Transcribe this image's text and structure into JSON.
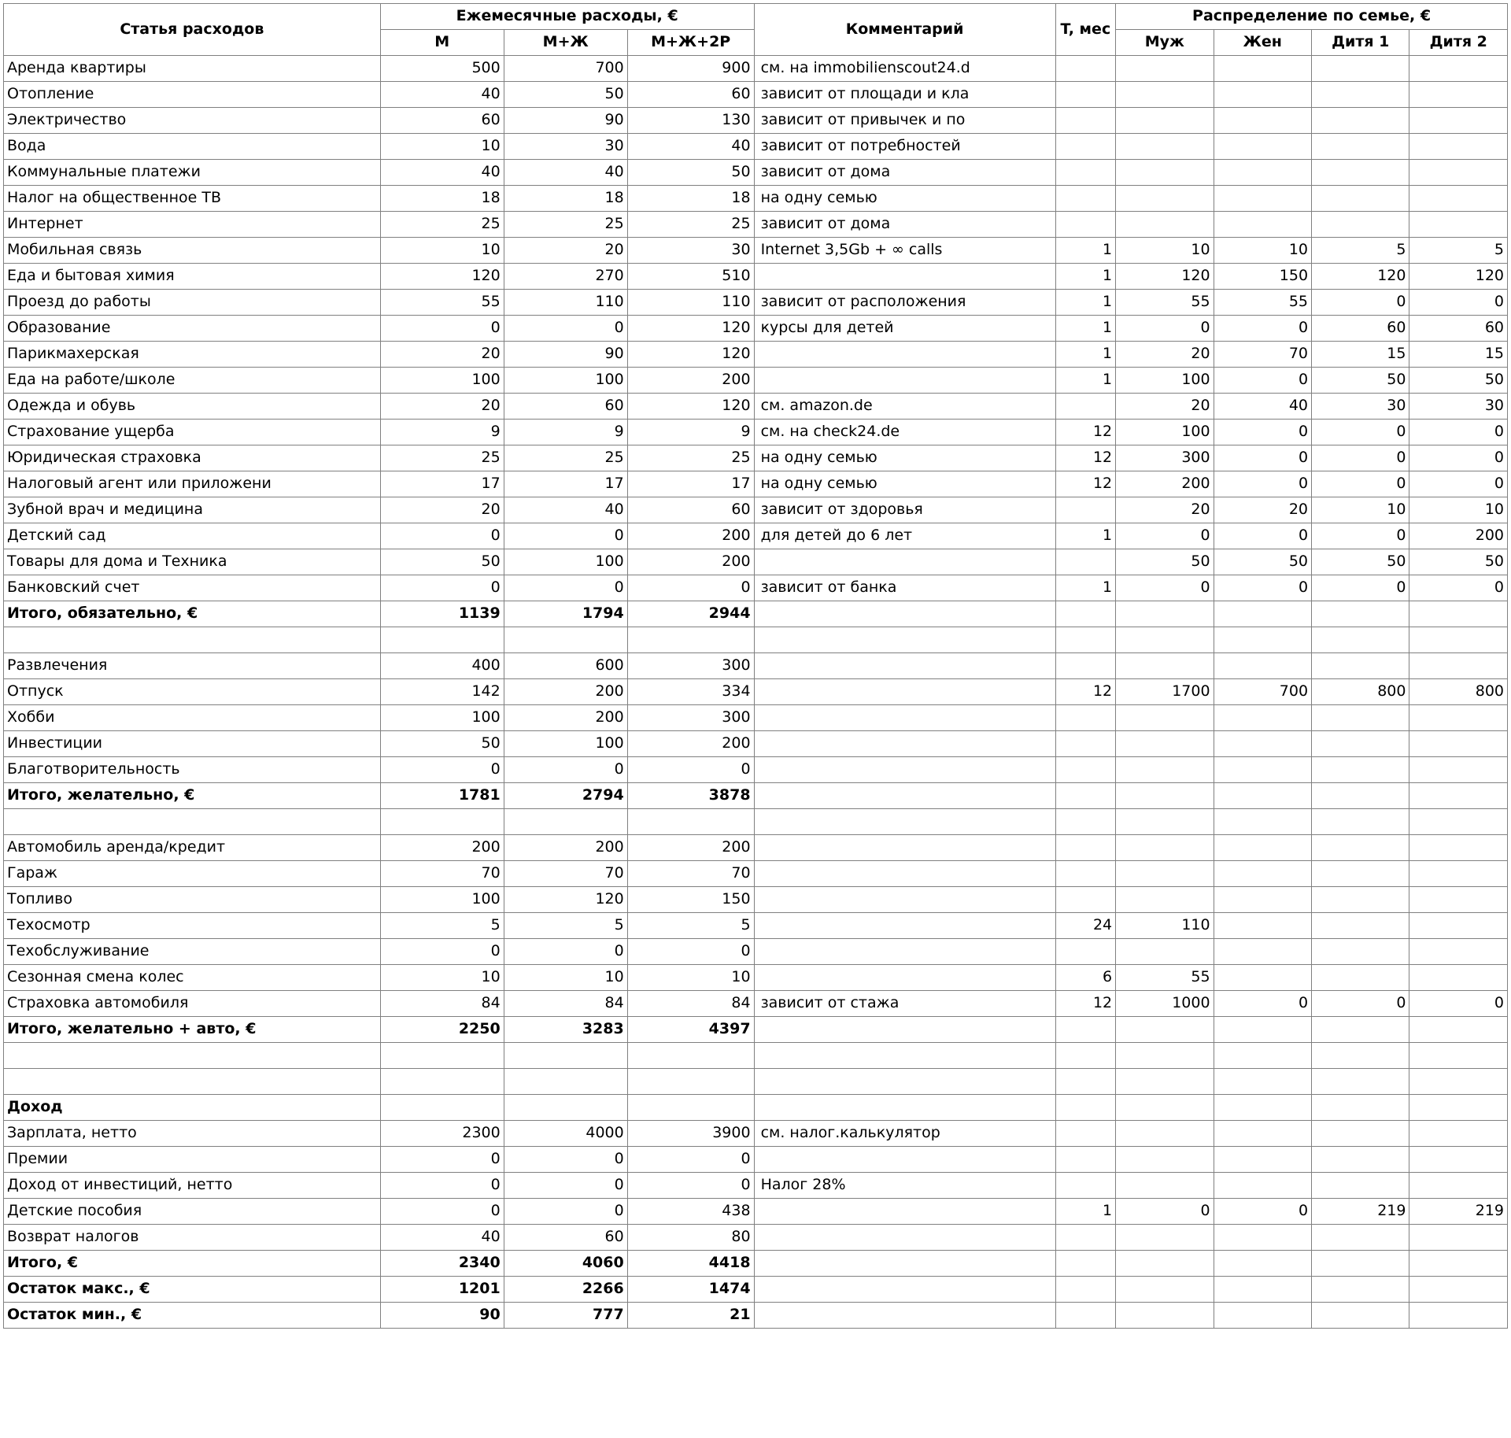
{
  "headers": {
    "article": "Статья расходов",
    "monthly_group": "Ежемесячные расходы, €",
    "m": "М",
    "mw": "М+Ж",
    "mw2": "М+Ж+2Р",
    "comment": "Комментарий",
    "t": "T, мес",
    "family_group": "Распределение по семье, €",
    "husband": "Муж",
    "wife": "Жен",
    "child1": "Дитя 1",
    "child2": "Дитя 2"
  },
  "rows": [
    {
      "label": "Аренда квартиры",
      "m": "500",
      "mw": "700",
      "mw2": "900",
      "comment": "см. на immobilienscout24.d",
      "t": "",
      "h": "",
      "w": "",
      "c1": "",
      "c2": ""
    },
    {
      "label": "Отопление",
      "m": "40",
      "mw": "50",
      "mw2": "60",
      "comment": "зависит от площади и кла",
      "t": "",
      "h": "",
      "w": "",
      "c1": "",
      "c2": ""
    },
    {
      "label": "Электричество",
      "m": "60",
      "mw": "90",
      "mw2": "130",
      "comment": "зависит от привычек и по",
      "t": "",
      "h": "",
      "w": "",
      "c1": "",
      "c2": ""
    },
    {
      "label": "Вода",
      "m": "10",
      "mw": "30",
      "mw2": "40",
      "comment": "зависит от потребностей",
      "t": "",
      "h": "",
      "w": "",
      "c1": "",
      "c2": ""
    },
    {
      "label": "Коммунальные платежи",
      "m": "40",
      "mw": "40",
      "mw2": "50",
      "comment": "зависит от дома",
      "t": "",
      "h": "",
      "w": "",
      "c1": "",
      "c2": ""
    },
    {
      "label": "Налог на общественное ТВ",
      "m": "18",
      "mw": "18",
      "mw2": "18",
      "comment": "на одну семью",
      "t": "",
      "h": "",
      "w": "",
      "c1": "",
      "c2": ""
    },
    {
      "label": "Интернет",
      "m": "25",
      "mw": "25",
      "mw2": "25",
      "comment": "зависит от дома",
      "t": "",
      "h": "",
      "w": "",
      "c1": "",
      "c2": ""
    },
    {
      "label": "Мобильная связь",
      "m": "10",
      "mw": "20",
      "mw2": "30",
      "comment": "Internet 3,5Gb + ∞ calls",
      "t": "1",
      "h": "10",
      "w": "10",
      "c1": "5",
      "c2": "5"
    },
    {
      "label": "Еда и бытовая химия",
      "m": "120",
      "mw": "270",
      "mw2": "510",
      "comment": "",
      "t": "1",
      "h": "120",
      "w": "150",
      "c1": "120",
      "c2": "120"
    },
    {
      "label": "Проезд до работы",
      "m": "55",
      "mw": "110",
      "mw2": "110",
      "comment": "зависит от расположения",
      "t": "1",
      "h": "55",
      "w": "55",
      "c1": "0",
      "c2": "0"
    },
    {
      "label": "Образование",
      "m": "0",
      "mw": "0",
      "mw2": "120",
      "comment": "курсы для детей",
      "t": "1",
      "h": "0",
      "w": "0",
      "c1": "60",
      "c2": "60"
    },
    {
      "label": "Парикмахерская",
      "m": "20",
      "mw": "90",
      "mw2": "120",
      "comment": "",
      "t": "1",
      "h": "20",
      "w": "70",
      "c1": "15",
      "c2": "15"
    },
    {
      "label": "Еда на работе/школе",
      "m": "100",
      "mw": "100",
      "mw2": "200",
      "comment": "",
      "t": "1",
      "h": "100",
      "w": "0",
      "c1": "50",
      "c2": "50"
    },
    {
      "label": "Одежда и обувь",
      "m": "20",
      "mw": "60",
      "mw2": "120",
      "comment": "см. amazon.de",
      "t": "",
      "h": "20",
      "w": "40",
      "c1": "30",
      "c2": "30"
    },
    {
      "label": "Страхование ущерба",
      "m": "9",
      "mw": "9",
      "mw2": "9",
      "comment": "см. на check24.de",
      "t": "12",
      "h": "100",
      "w": "0",
      "c1": "0",
      "c2": "0"
    },
    {
      "label": "Юридическая страховка",
      "m": "25",
      "mw": "25",
      "mw2": "25",
      "comment": "на одну семью",
      "t": "12",
      "h": "300",
      "w": "0",
      "c1": "0",
      "c2": "0"
    },
    {
      "label": "Налоговый агент или приложени",
      "m": "17",
      "mw": "17",
      "mw2": "17",
      "comment": "на одну семью",
      "t": "12",
      "h": "200",
      "w": "0",
      "c1": "0",
      "c2": "0"
    },
    {
      "label": "Зубной врач и медицина",
      "m": "20",
      "mw": "40",
      "mw2": "60",
      "comment": "зависит от здоровья",
      "t": "",
      "h": "20",
      "w": "20",
      "c1": "10",
      "c2": "10"
    },
    {
      "label": "Детский сад",
      "m": "0",
      "mw": "0",
      "mw2": "200",
      "comment": "для детей до 6 лет",
      "t": "1",
      "h": "0",
      "w": "0",
      "c1": "0",
      "c2": "200"
    },
    {
      "label": "Товары для дома и Техника",
      "m": "50",
      "mw": "100",
      "mw2": "200",
      "comment": "",
      "t": "",
      "h": "50",
      "w": "50",
      "c1": "50",
      "c2": "50"
    },
    {
      "label": "Банковский счет",
      "m": "0",
      "mw": "0",
      "mw2": "0",
      "comment": "зависит от банка",
      "t": "1",
      "h": "0",
      "w": "0",
      "c1": "0",
      "c2": "0"
    },
    {
      "bold": true,
      "label": "Итого, обязательно, €",
      "m": "1139",
      "mw": "1794",
      "mw2": "2944",
      "comment": "",
      "t": "",
      "h": "",
      "w": "",
      "c1": "",
      "c2": ""
    },
    {
      "empty": true
    },
    {
      "label": "Развлечения",
      "m": "400",
      "mw": "600",
      "mw2": "300",
      "comment": "",
      "t": "",
      "h": "",
      "w": "",
      "c1": "",
      "c2": ""
    },
    {
      "label": "Отпуск",
      "m": "142",
      "mw": "200",
      "mw2": "334",
      "comment": "",
      "t": "12",
      "h": "1700",
      "w": "700",
      "c1": "800",
      "c2": "800"
    },
    {
      "label": "Хобби",
      "m": "100",
      "mw": "200",
      "mw2": "300",
      "comment": "",
      "t": "",
      "h": "",
      "w": "",
      "c1": "",
      "c2": ""
    },
    {
      "label": "Инвестиции",
      "m": "50",
      "mw": "100",
      "mw2": "200",
      "comment": "",
      "t": "",
      "h": "",
      "w": "",
      "c1": "",
      "c2": ""
    },
    {
      "label": "Благотворительность",
      "m": "0",
      "mw": "0",
      "mw2": "0",
      "comment": "",
      "t": "",
      "h": "",
      "w": "",
      "c1": "",
      "c2": ""
    },
    {
      "bold": true,
      "label": "Итого, желательно, €",
      "m": "1781",
      "mw": "2794",
      "mw2": "3878",
      "comment": "",
      "t": "",
      "h": "",
      "w": "",
      "c1": "",
      "c2": ""
    },
    {
      "empty": true
    },
    {
      "label": "Автомобиль аренда/кредит",
      "m": "200",
      "mw": "200",
      "mw2": "200",
      "comment": "",
      "t": "",
      "h": "",
      "w": "",
      "c1": "",
      "c2": ""
    },
    {
      "label": "Гараж",
      "m": "70",
      "mw": "70",
      "mw2": "70",
      "comment": "",
      "t": "",
      "h": "",
      "w": "",
      "c1": "",
      "c2": ""
    },
    {
      "label": "Топливо",
      "m": "100",
      "mw": "120",
      "mw2": "150",
      "comment": "",
      "t": "",
      "h": "",
      "w": "",
      "c1": "",
      "c2": ""
    },
    {
      "label": "Техосмотр",
      "m": "5",
      "mw": "5",
      "mw2": "5",
      "comment": "",
      "t": "24",
      "h": "110",
      "w": "",
      "c1": "",
      "c2": ""
    },
    {
      "label": "Техобслуживание",
      "m": "0",
      "mw": "0",
      "mw2": "0",
      "comment": "",
      "t": "",
      "h": "",
      "w": "",
      "c1": "",
      "c2": ""
    },
    {
      "label": "Сезонная смена колес",
      "m": "10",
      "mw": "10",
      "mw2": "10",
      "comment": "",
      "t": "6",
      "h": "55",
      "w": "",
      "c1": "",
      "c2": ""
    },
    {
      "label": "Страховка автомобиля",
      "m": "84",
      "mw": "84",
      "mw2": "84",
      "comment": "зависит от стажа",
      "t": "12",
      "h": "1000",
      "w": "0",
      "c1": "0",
      "c2": "0"
    },
    {
      "bold": true,
      "label": "Итого, желательно + авто, €",
      "m": "2250",
      "mw": "3283",
      "mw2": "4397",
      "comment": "",
      "t": "",
      "h": "",
      "w": "",
      "c1": "",
      "c2": ""
    },
    {
      "empty": true
    },
    {
      "empty": true
    },
    {
      "bold": true,
      "label": "Доход",
      "m": "",
      "mw": "",
      "mw2": "",
      "comment": "",
      "t": "",
      "h": "",
      "w": "",
      "c1": "",
      "c2": ""
    },
    {
      "label": "Зарплата, нетто",
      "m": "2300",
      "mw": "4000",
      "mw2": "3900",
      "comment": "см. налог.калькулятор",
      "t": "",
      "h": "",
      "w": "",
      "c1": "",
      "c2": ""
    },
    {
      "label": "Премии",
      "m": "0",
      "mw": "0",
      "mw2": "0",
      "comment": "",
      "t": "",
      "h": "",
      "w": "",
      "c1": "",
      "c2": ""
    },
    {
      "label": "Доход от инвестиций, нетто",
      "m": "0",
      "mw": "0",
      "mw2": "0",
      "comment": "Налог 28%",
      "t": "",
      "h": "",
      "w": "",
      "c1": "",
      "c2": ""
    },
    {
      "label": "Детские пособия",
      "m": "0",
      "mw": "0",
      "mw2": "438",
      "comment": "",
      "t": "1",
      "h": "0",
      "w": "0",
      "c1": "219",
      "c2": "219"
    },
    {
      "label": "Возврат налогов",
      "m": "40",
      "mw": "60",
      "mw2": "80",
      "comment": "",
      "t": "",
      "h": "",
      "w": "",
      "c1": "",
      "c2": ""
    },
    {
      "bold": true,
      "label": "Итого, €",
      "m": "2340",
      "mw": "4060",
      "mw2": "4418",
      "comment": "",
      "t": "",
      "h": "",
      "w": "",
      "c1": "",
      "c2": ""
    },
    {
      "bold": true,
      "label": "Остаток макс., €",
      "m": "1201",
      "mw": "2266",
      "mw2": "1474",
      "comment": "",
      "t": "",
      "h": "",
      "w": "",
      "c1": "",
      "c2": ""
    },
    {
      "bold": true,
      "label": "Остаток мин., €",
      "m": "90",
      "mw": "777",
      "mw2": "21",
      "comment": "",
      "t": "",
      "h": "",
      "w": "",
      "c1": "",
      "c2": ""
    }
  ]
}
